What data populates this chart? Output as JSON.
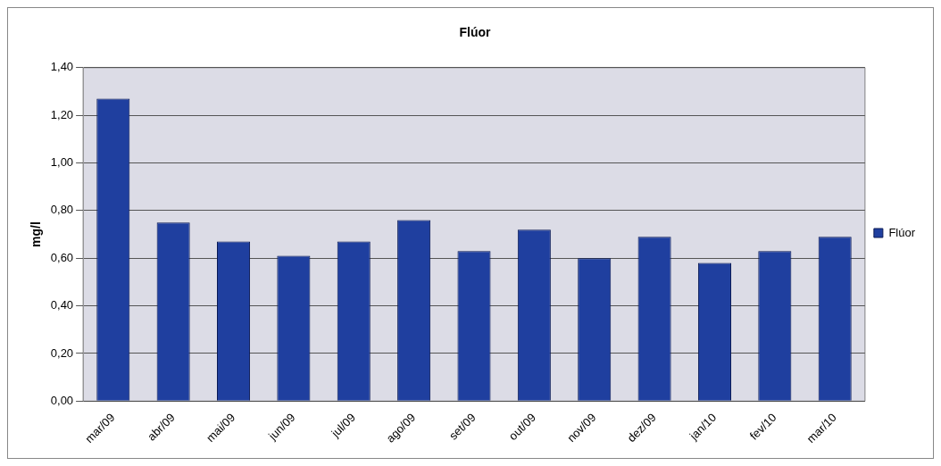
{
  "chart_data": {
    "type": "bar",
    "title": "Flúor",
    "ylabel": "mg/l",
    "categories": [
      "mar/09",
      "abr/09",
      "mai/09",
      "jun/09",
      "jul/09",
      "ago/09",
      "set/09",
      "out/09",
      "nov/09",
      "dez/09",
      "jan/10",
      "fev/10",
      "mar/10"
    ],
    "series": [
      {
        "name": "Flúor",
        "color": "#1f3f9f",
        "values": [
          1.27,
          0.75,
          0.67,
          0.61,
          0.67,
          0.76,
          0.63,
          0.72,
          0.6,
          0.69,
          0.58,
          0.63,
          0.69
        ]
      }
    ],
    "ylim": [
      0,
      1.4
    ],
    "yticks": [
      {
        "value": 0,
        "label": "0,00"
      },
      {
        "value": 0.2,
        "label": "0,20"
      },
      {
        "value": 0.4,
        "label": "0,40"
      },
      {
        "value": 0.6,
        "label": "0,60"
      },
      {
        "value": 0.8,
        "label": "0,80"
      },
      {
        "value": 1,
        "label": "1,00"
      },
      {
        "value": 1.2,
        "label": "1,20"
      },
      {
        "value": 1.4,
        "label": "1,40"
      }
    ],
    "grid": "y",
    "legend": "right"
  }
}
